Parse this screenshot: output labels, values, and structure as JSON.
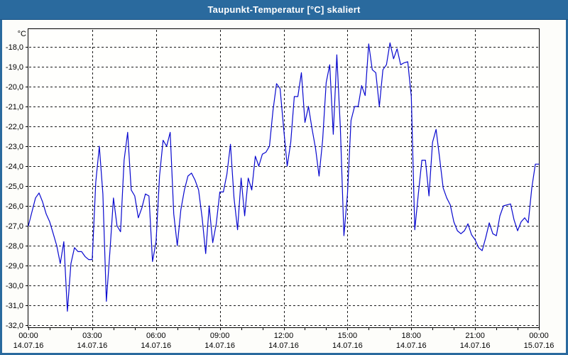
{
  "window": {
    "title": "Taupunkt-Temperatur [°C] skaliert",
    "titlebar_color": "#2a6a9e",
    "border_color": "#2a6a9e"
  },
  "chart_data": {
    "type": "line",
    "title": "Taupunkt-Temperatur [°C] skaliert",
    "y_unit_label": "°C",
    "ylim": [
      -32.1,
      -17.1
    ],
    "grid": "dashed",
    "grid_color": "#1a1a1a",
    "line_color": "#0808cf",
    "legend": "none",
    "y_ticks": [
      {
        "label": "-18,0",
        "value": -18
      },
      {
        "label": "-19,0",
        "value": -19
      },
      {
        "label": "-20,0",
        "value": -20
      },
      {
        "label": "-21,0",
        "value": -21
      },
      {
        "label": "-22,0",
        "value": -22
      },
      {
        "label": "-23,0",
        "value": -23
      },
      {
        "label": "-24,0",
        "value": -24
      },
      {
        "label": "-25,0",
        "value": -25
      },
      {
        "label": "-26,0",
        "value": -26
      },
      {
        "label": "-27,0",
        "value": -27
      },
      {
        "label": "-28,0",
        "value": -28
      },
      {
        "label": "-29,0",
        "value": -29
      },
      {
        "label": "-30,0",
        "value": -30
      },
      {
        "label": "-31,0",
        "value": -31
      },
      {
        "label": "-32,0",
        "value": -32
      }
    ],
    "x_ticks": [
      {
        "time": "00:00",
        "date": "14.07.16"
      },
      {
        "time": "03:00",
        "date": "14.07.16"
      },
      {
        "time": "06:00",
        "date": "14.07.16"
      },
      {
        "time": "09:00",
        "date": "14.07.16"
      },
      {
        "time": "12:00",
        "date": "14.07.16"
      },
      {
        "time": "15:00",
        "date": "14.07.16"
      },
      {
        "time": "18:00",
        "date": "14.07.16"
      },
      {
        "time": "21:00",
        "date": "14.07.16"
      },
      {
        "time": "00:00",
        "date": "15.07.16"
      }
    ],
    "x_minor_tick_interval_hours": 1,
    "series": [
      {
        "name": "Taupunkt-Temperatur",
        "start": "00:00 14.07.16",
        "end": "00:00 15.07.16",
        "interval_minutes": 10,
        "values": [
          -27.0,
          -26.3,
          -25.6,
          -25.35,
          -25.8,
          -26.4,
          -26.8,
          -27.4,
          -28.0,
          -28.9,
          -27.8,
          -31.3,
          -28.9,
          -28.1,
          -28.3,
          -28.3,
          -28.55,
          -28.7,
          -28.7,
          -24.8,
          -23.0,
          -25.4,
          -30.8,
          -28.3,
          -25.6,
          -27.0,
          -27.3,
          -23.7,
          -22.3,
          -25.2,
          -25.5,
          -26.6,
          -26.1,
          -25.4,
          -25.5,
          -28.8,
          -27.8,
          -24.5,
          -22.7,
          -23.0,
          -22.3,
          -26.4,
          -28.0,
          -26.2,
          -25.2,
          -24.5,
          -24.35,
          -24.7,
          -25.2,
          -26.6,
          -28.4,
          -26.0,
          -27.85,
          -26.9,
          -25.3,
          -25.3,
          -24.4,
          -22.9,
          -25.6,
          -27.2,
          -24.6,
          -26.5,
          -24.6,
          -25.2,
          -23.5,
          -24.0,
          -23.4,
          -23.3,
          -23.0,
          -21.2,
          -19.85,
          -20.1,
          -22.1,
          -24.0,
          -22.8,
          -20.5,
          -20.5,
          -19.3,
          -21.8,
          -21.0,
          -22.1,
          -23.1,
          -24.5,
          -22.7,
          -19.8,
          -18.9,
          -22.4,
          -18.4,
          -22.1,
          -27.5,
          -25.4,
          -21.7,
          -21.0,
          -21.0,
          -19.95,
          -20.45,
          -17.85,
          -19.15,
          -19.3,
          -21.0,
          -19.15,
          -18.9,
          -17.8,
          -18.6,
          -18.1,
          -18.9,
          -18.8,
          -18.75,
          -20.5,
          -27.2,
          -25.4,
          -23.7,
          -23.7,
          -25.5,
          -22.8,
          -22.15,
          -23.6,
          -25.1,
          -25.6,
          -25.95,
          -26.8,
          -27.25,
          -27.4,
          -27.25,
          -26.9,
          -27.45,
          -27.7,
          -28.1,
          -28.25,
          -27.6,
          -26.85,
          -27.4,
          -27.5,
          -26.5,
          -26.0,
          -25.95,
          -25.9,
          -26.7,
          -27.25,
          -26.8,
          -26.6,
          -26.85,
          -25.1,
          -23.9,
          -23.9
        ]
      }
    ]
  }
}
